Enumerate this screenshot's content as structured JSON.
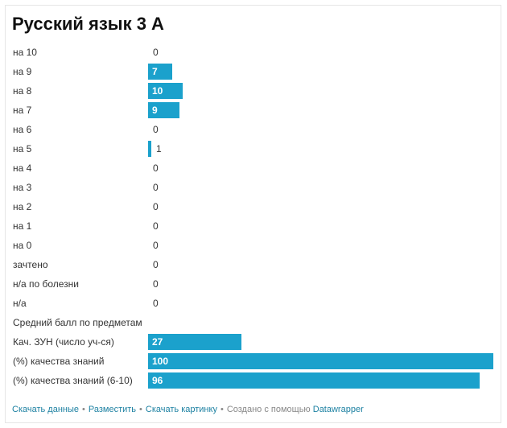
{
  "chart_data": {
    "type": "bar",
    "orientation": "horizontal",
    "title": "Русский язык 3 А",
    "bar_color": "#1ba1cc",
    "categories": [
      "на 10",
      "на 9",
      "на 8",
      "на 7",
      "на 6",
      "на 5",
      "на 4",
      "на 3",
      "на 2",
      "на 1",
      "на 0",
      "зачтено",
      "н/а по болезни",
      "н/а",
      "Средний балл по предметам",
      "Кач. ЗУН (число уч-ся)",
      "(%) качества знаний",
      "(%) качества знаний (6-10)"
    ],
    "values": [
      0,
      7,
      10,
      9,
      0,
      1,
      0,
      0,
      0,
      0,
      0,
      0,
      0,
      0,
      null,
      27,
      100,
      96
    ],
    "value_labels": [
      "0",
      "7",
      "10",
      "9",
      "0",
      "1",
      "0",
      "0",
      "0",
      "0",
      "0",
      "0",
      "0",
      "0",
      "",
      "27",
      "100",
      "96"
    ],
    "xlim": [
      0,
      100
    ]
  },
  "footer": {
    "download_data": "Скачать данные",
    "embed": "Разместить",
    "download_image": "Скачать картинку",
    "created_with": "Создано с помощью",
    "brand": "Datawrapper",
    "separator": "•"
  }
}
